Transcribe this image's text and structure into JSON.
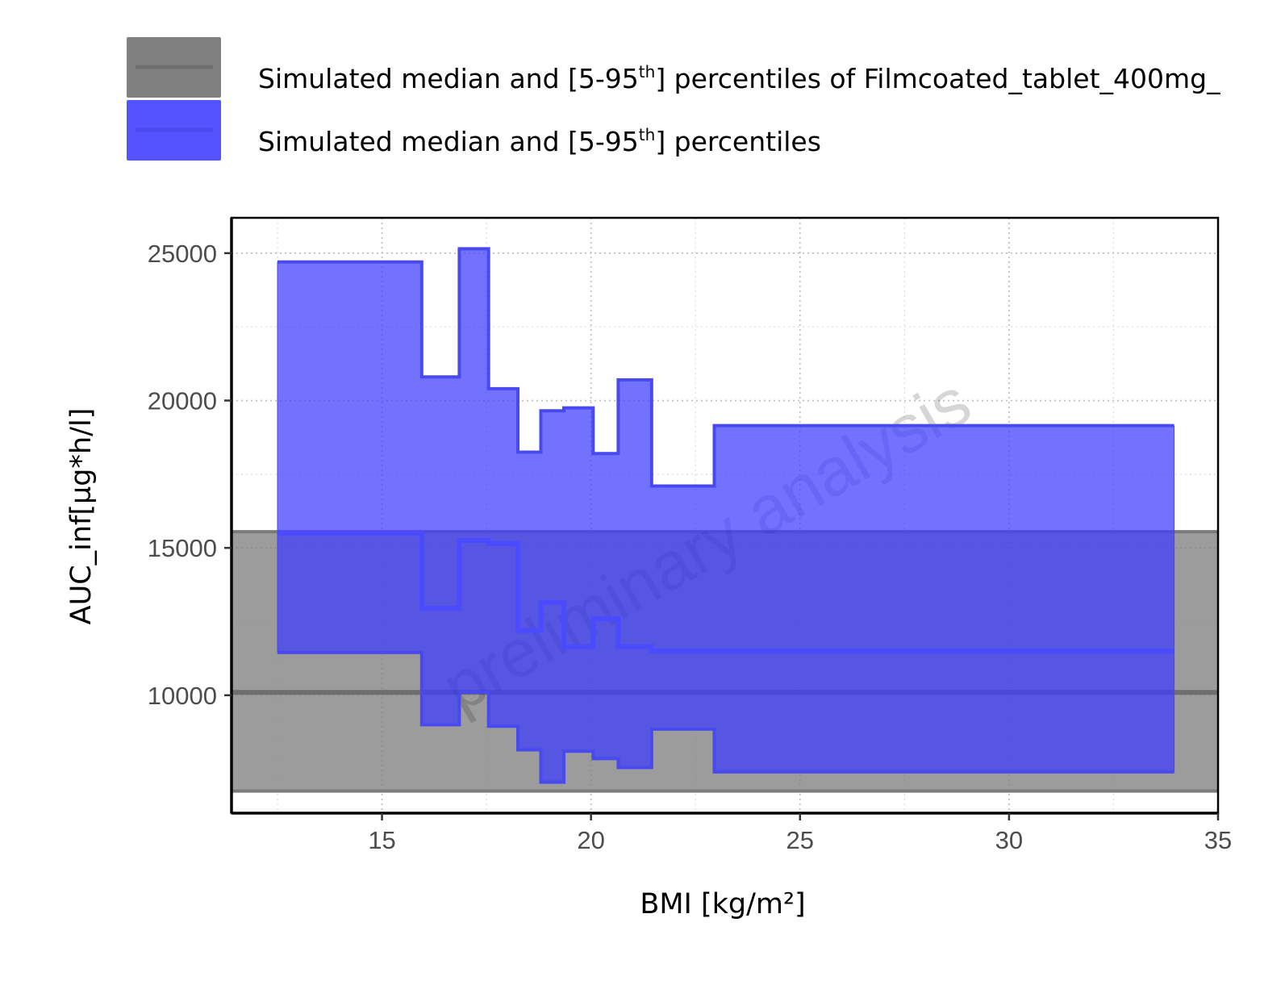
{
  "chart_data": {
    "type": "area",
    "xlabel": "BMI [kg/m²]",
    "ylabel": "AUC_inf[µg*h/l]",
    "xlim": [
      11.4,
      35
    ],
    "ylim": [
      6000,
      26200
    ],
    "x_ticks": [
      15,
      20,
      25,
      30,
      35
    ],
    "y_ticks": [
      10000,
      15000,
      20000,
      25000
    ],
    "x_minor_ticks": [
      12.5,
      17.5,
      22.5,
      27.5,
      32.5
    ],
    "y_minor_ticks": [
      12500,
      17500,
      22500
    ],
    "grid": true,
    "watermark": "preliminary analysis",
    "legend_position": "top",
    "legend": [
      {
        "label_main": "Simulated median and [5-95",
        "label_sup": "th",
        "label_tail": "] percentiles of Filmcoated_tablet_400mg_",
        "color": "#808080"
      },
      {
        "label_main": "Simulated median and [5-95",
        "label_sup": "th",
        "label_tail": "] percentiles",
        "color": "#4d4dff"
      }
    ],
    "series": [
      {
        "type": "band",
        "color": "#808080",
        "x_range": [
          11.4,
          35
        ],
        "median": 10100,
        "p5": 6750,
        "p95": 15550
      },
      {
        "type": "step-band",
        "color": "#4d4dff",
        "bins": [
          {
            "x0": 12.5,
            "x1": 15.95,
            "p95": 24700,
            "median": 15500,
            "p5": 11450
          },
          {
            "x0": 15.95,
            "x1": 16.85,
            "p95": 20800,
            "median": 12950,
            "p5": 9000
          },
          {
            "x0": 16.85,
            "x1": 17.55,
            "p95": 25150,
            "median": 15250,
            "p5": 10100
          },
          {
            "x0": 17.55,
            "x1": 18.25,
            "p95": 20400,
            "median": 15150,
            "p5": 8950
          },
          {
            "x0": 18.25,
            "x1": 18.8,
            "p95": 18250,
            "median": 12200,
            "p5": 8150
          },
          {
            "x0": 18.8,
            "x1": 19.35,
            "p95": 19650,
            "median": 13150,
            "p5": 7050
          },
          {
            "x0": 19.35,
            "x1": 20.05,
            "p95": 19750,
            "median": 11650,
            "p5": 8100
          },
          {
            "x0": 20.05,
            "x1": 20.65,
            "p95": 18200,
            "median": 12600,
            "p5": 7850
          },
          {
            "x0": 20.65,
            "x1": 21.45,
            "p95": 20700,
            "median": 11650,
            "p5": 7550
          },
          {
            "x0": 21.45,
            "x1": 22.95,
            "p95": 17100,
            "median": 11500,
            "p5": 8850
          },
          {
            "x0": 22.95,
            "x1": 33.95,
            "p95": 19150,
            "median": 11500,
            "p5": 7400
          }
        ]
      }
    ]
  }
}
